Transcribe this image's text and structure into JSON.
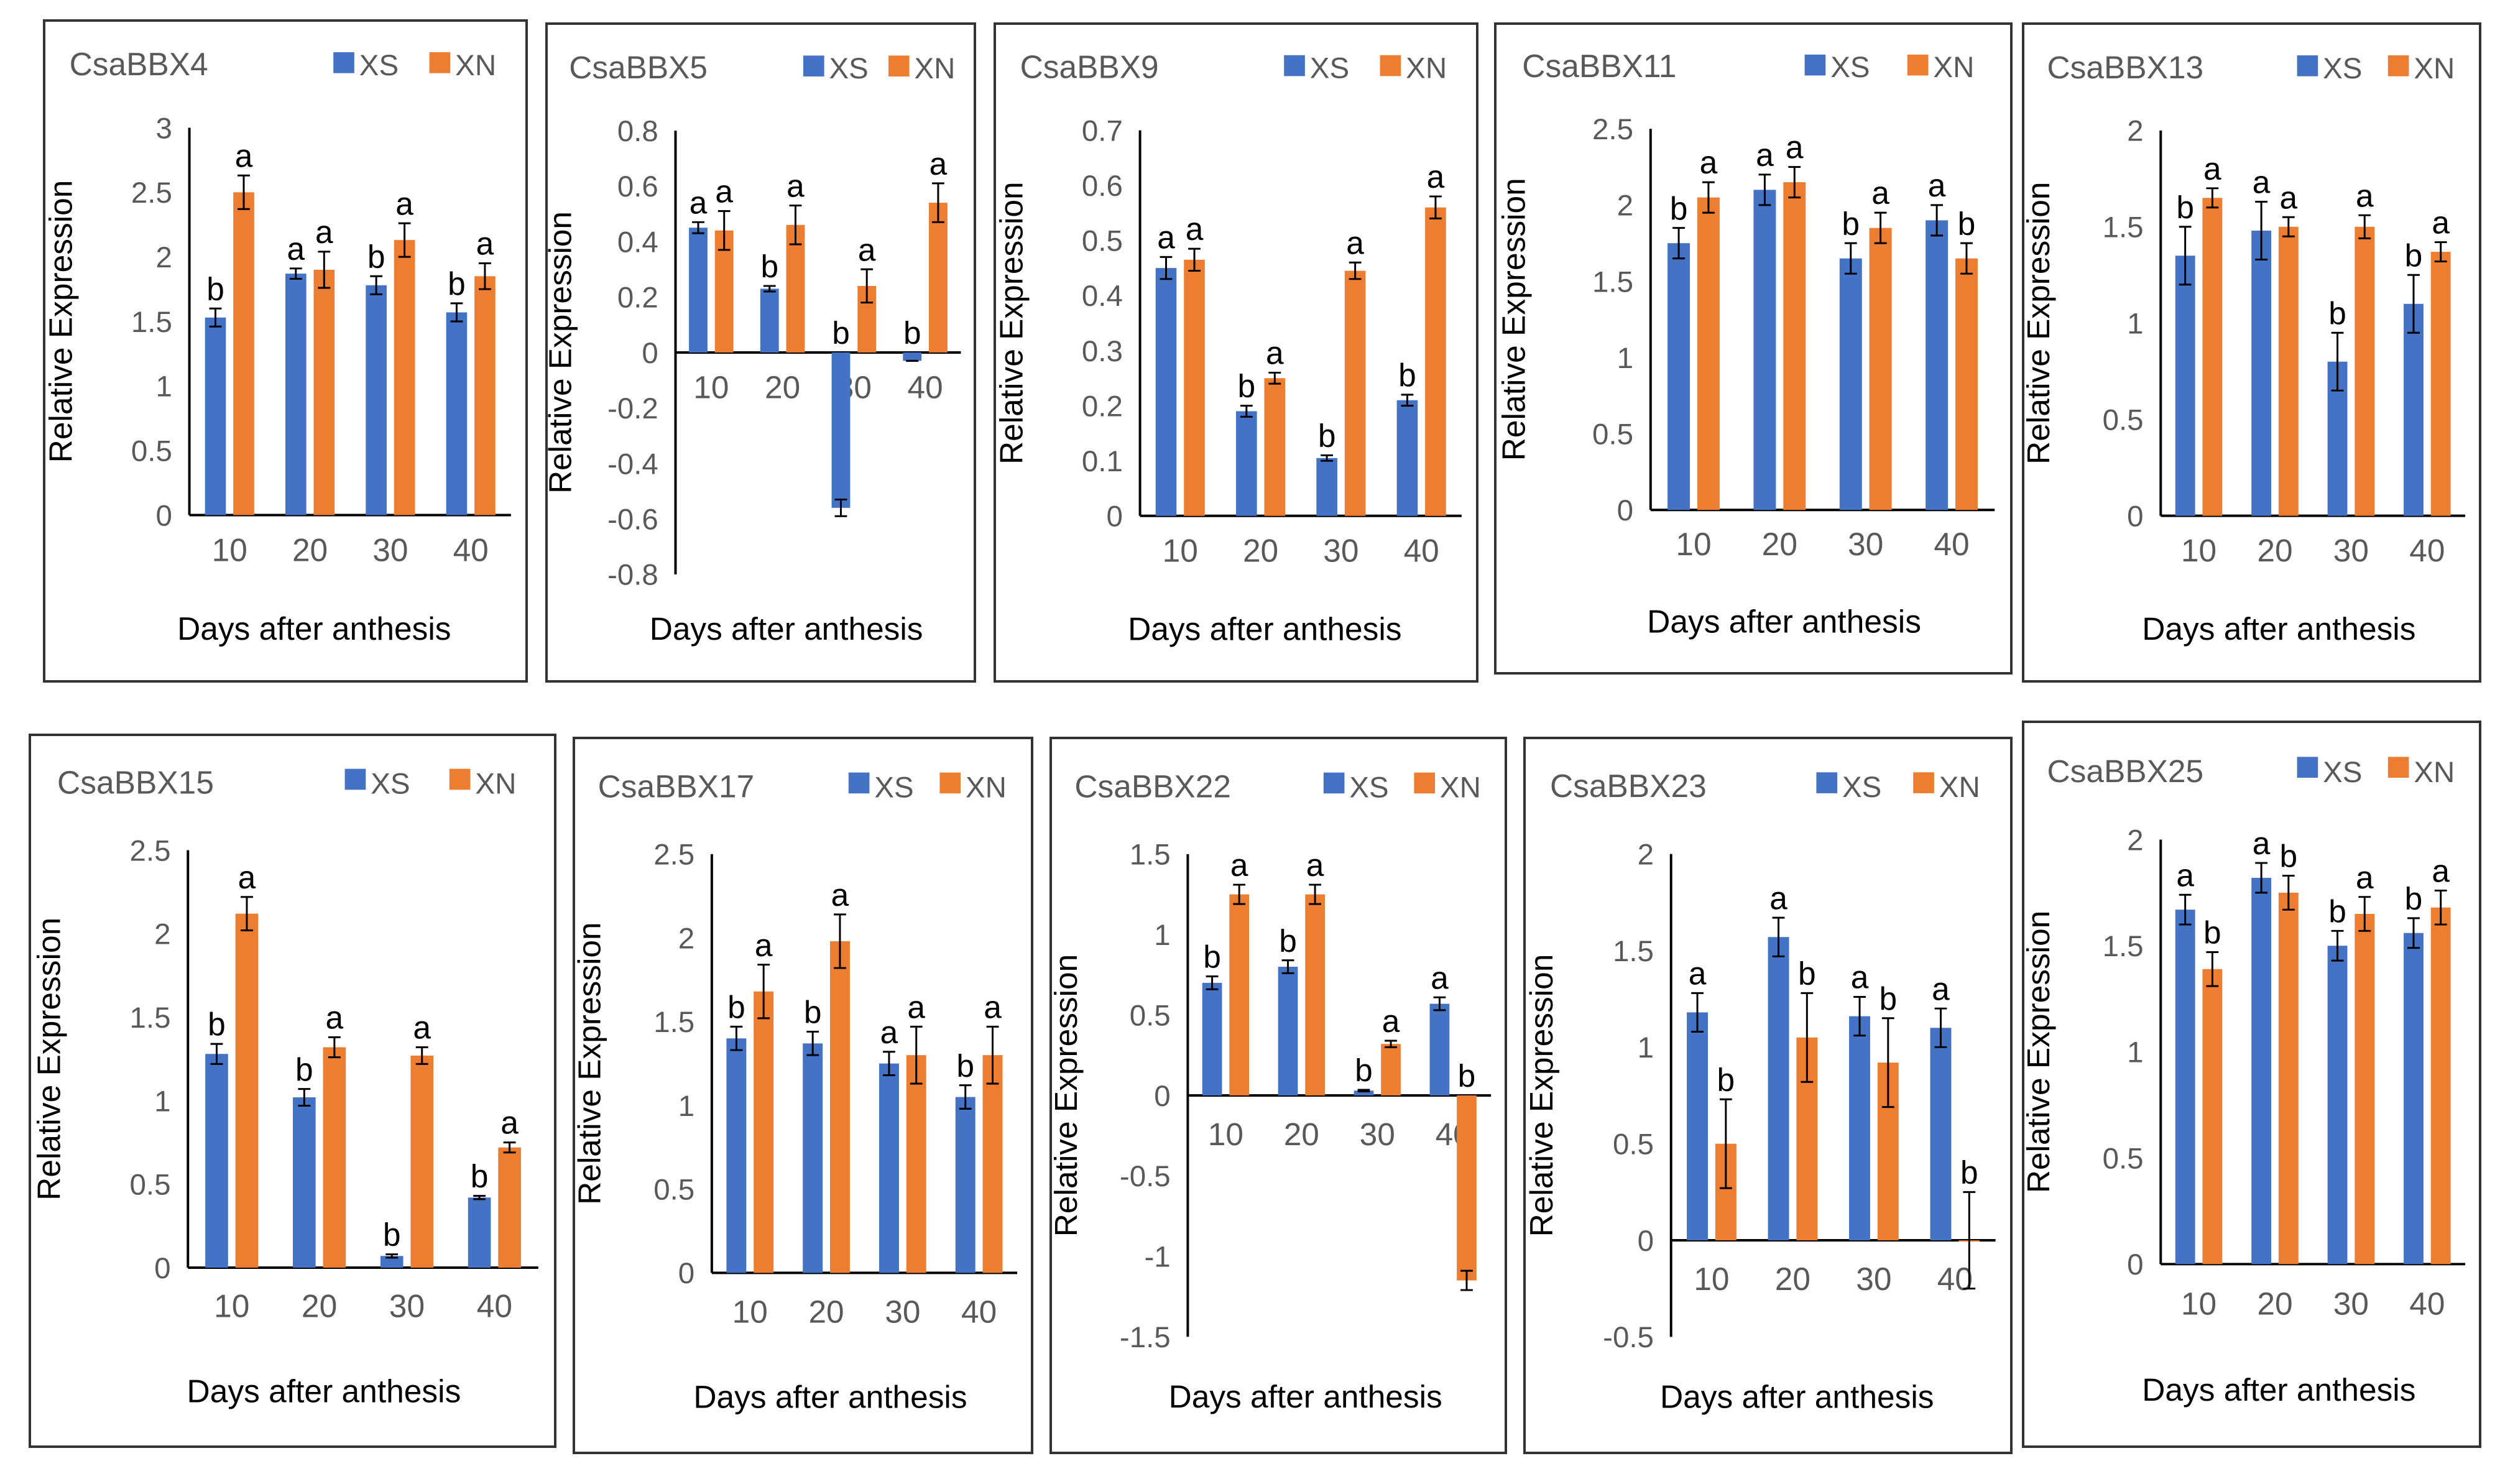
{
  "chart_data": [
    {
      "type": "bar",
      "title": "CsaBBX4",
      "xlabel": "Days after anthesis",
      "ylabel": "Relative Expression",
      "ylim": [
        0,
        3
      ],
      "yticks": [
        "0",
        "0.5",
        "1",
        "1.5",
        "2",
        "2.5",
        "3"
      ],
      "categories": [
        "10",
        "20",
        "30",
        "40"
      ],
      "legend_position": "top-right",
      "series": [
        {
          "name": "XS",
          "color": "#4472C4",
          "values": [
            1.53,
            1.87,
            1.78,
            1.57
          ],
          "errors": [
            0.07,
            0.04,
            0.07,
            0.07
          ],
          "letters": [
            "b",
            "a",
            "b",
            "b"
          ]
        },
        {
          "name": "XN",
          "color": "#ED7D31",
          "values": [
            2.5,
            1.9,
            2.13,
            1.85
          ],
          "errors": [
            0.13,
            0.14,
            0.13,
            0.1
          ],
          "letters": [
            "a",
            "a",
            "a",
            "a"
          ]
        }
      ]
    },
    {
      "type": "bar",
      "title": "CsaBBX5",
      "xlabel": "Days after anthesis",
      "ylabel": "Relative Expression",
      "ylim": [
        -0.8,
        0.8
      ],
      "yticks": [
        "-0.8",
        "-0.6",
        "-0.4",
        "-0.2",
        "0",
        "0.2",
        "0.4",
        "0.6",
        "0.8"
      ],
      "categories": [
        "10",
        "20",
        "30",
        "40"
      ],
      "legend_position": "top-right",
      "series": [
        {
          "name": "XS",
          "color": "#4472C4",
          "values": [
            0.45,
            0.23,
            -0.56,
            -0.03
          ],
          "errors": [
            0.02,
            0.01,
            0.03,
            0.0
          ],
          "letters": [
            "a",
            "b",
            "b",
            "b"
          ]
        },
        {
          "name": "XN",
          "color": "#ED7D31",
          "values": [
            0.44,
            0.46,
            0.24,
            0.54
          ],
          "errors": [
            0.07,
            0.07,
            0.06,
            0.07
          ],
          "letters": [
            "a",
            "a",
            "a",
            "a"
          ]
        }
      ]
    },
    {
      "type": "bar",
      "title": "CsaBBX9",
      "xlabel": "Days after anthesis",
      "ylabel": "Relative Expression",
      "ylim": [
        0,
        0.7
      ],
      "yticks": [
        "0",
        "0.1",
        "0.2",
        "0.3",
        "0.4",
        "0.5",
        "0.6",
        "0.7"
      ],
      "categories": [
        "10",
        "20",
        "30",
        "40"
      ],
      "legend_position": "top-right",
      "series": [
        {
          "name": "XS",
          "color": "#4472C4",
          "values": [
            0.45,
            0.19,
            0.105,
            0.21
          ],
          "errors": [
            0.02,
            0.01,
            0.005,
            0.01
          ],
          "letters": [
            "a",
            "b",
            "b",
            "b"
          ]
        },
        {
          "name": "XN",
          "color": "#ED7D31",
          "values": [
            0.465,
            0.25,
            0.445,
            0.56
          ],
          "errors": [
            0.02,
            0.01,
            0.015,
            0.02
          ],
          "letters": [
            "a",
            "a",
            "a",
            "a"
          ]
        }
      ]
    },
    {
      "type": "bar",
      "title": "CsaBBX11",
      "xlabel": "Days after anthesis",
      "ylabel": "Relative Expression",
      "ylim": [
        0,
        2.5
      ],
      "yticks": [
        "0",
        "0.5",
        "1",
        "1.5",
        "2",
        "2.5"
      ],
      "categories": [
        "10",
        "20",
        "30",
        "40"
      ],
      "legend_position": "top-right",
      "series": [
        {
          "name": "XS",
          "color": "#4472C4",
          "values": [
            1.75,
            2.1,
            1.65,
            1.9
          ],
          "errors": [
            0.1,
            0.1,
            0.1,
            0.1
          ],
          "letters": [
            "b",
            "a",
            "b",
            "a"
          ]
        },
        {
          "name": "XN",
          "color": "#ED7D31",
          "values": [
            2.05,
            2.15,
            1.85,
            1.65
          ],
          "errors": [
            0.1,
            0.1,
            0.1,
            0.1
          ],
          "letters": [
            "a",
            "a",
            "a",
            "b"
          ]
        }
      ]
    },
    {
      "type": "bar",
      "title": "CsaBBX13",
      "xlabel": "Days after anthesis",
      "ylabel": "Relative Expression",
      "ylim": [
        0,
        2
      ],
      "yticks": [
        "0",
        "0.5",
        "1",
        "1.5",
        "2"
      ],
      "categories": [
        "10",
        "20",
        "30",
        "40"
      ],
      "legend_position": "top-right",
      "series": [
        {
          "name": "XS",
          "color": "#4472C4",
          "values": [
            1.35,
            1.48,
            0.8,
            1.1
          ],
          "errors": [
            0.15,
            0.15,
            0.15,
            0.15
          ],
          "letters": [
            "b",
            "a",
            "b",
            "b"
          ]
        },
        {
          "name": "XN",
          "color": "#ED7D31",
          "values": [
            1.65,
            1.5,
            1.5,
            1.37
          ],
          "errors": [
            0.05,
            0.05,
            0.06,
            0.05
          ],
          "letters": [
            "a",
            "a",
            "a",
            "a"
          ]
        }
      ]
    },
    {
      "type": "bar",
      "title": "CsaBBX15",
      "xlabel": "Days after anthesis",
      "ylabel": "Relative Expression",
      "ylim": [
        0,
        2.5
      ],
      "yticks": [
        "0",
        "0.5",
        "1",
        "1.5",
        "2",
        "2.5"
      ],
      "categories": [
        "10",
        "20",
        "30",
        "40"
      ],
      "legend_position": "top-right",
      "series": [
        {
          "name": "XS",
          "color": "#4472C4",
          "values": [
            1.28,
            1.02,
            0.07,
            0.42
          ],
          "errors": [
            0.06,
            0.05,
            0.01,
            0.01
          ],
          "letters": [
            "b",
            "b",
            "b",
            "b"
          ]
        },
        {
          "name": "XN",
          "color": "#ED7D31",
          "values": [
            2.12,
            1.32,
            1.27,
            0.72
          ],
          "errors": [
            0.1,
            0.06,
            0.05,
            0.03
          ],
          "letters": [
            "a",
            "a",
            "a",
            "a"
          ]
        }
      ]
    },
    {
      "type": "bar",
      "title": "CsaBBX17",
      "xlabel": "Days after anthesis",
      "ylabel": "Relative Expression",
      "ylim": [
        0,
        2.5
      ],
      "yticks": [
        "0",
        "0.5",
        "1",
        "1.5",
        "2",
        "2.5"
      ],
      "categories": [
        "10",
        "20",
        "30",
        "40"
      ],
      "legend_position": "top-right",
      "series": [
        {
          "name": "XS",
          "color": "#4472C4",
          "values": [
            1.4,
            1.37,
            1.25,
            1.05
          ],
          "errors": [
            0.07,
            0.07,
            0.07,
            0.07
          ],
          "letters": [
            "b",
            "b",
            "a",
            "b"
          ]
        },
        {
          "name": "XN",
          "color": "#ED7D31",
          "values": [
            1.68,
            1.98,
            1.3,
            1.3
          ],
          "errors": [
            0.16,
            0.16,
            0.17,
            0.17
          ],
          "letters": [
            "a",
            "a",
            "a",
            "a"
          ]
        }
      ]
    },
    {
      "type": "bar",
      "title": "CsaBBX22",
      "xlabel": "Days after anthesis",
      "ylabel": "Relative Expression",
      "ylim": [
        -1.5,
        1.5
      ],
      "yticks": [
        "-1.5",
        "-1",
        "-0.5",
        "0",
        "0.5",
        "1",
        "1.5"
      ],
      "categories": [
        "10",
        "20",
        "30",
        "40"
      ],
      "legend_position": "top-right",
      "series": [
        {
          "name": "XS",
          "color": "#4472C4",
          "values": [
            0.7,
            0.8,
            0.03,
            0.57
          ],
          "errors": [
            0.04,
            0.04,
            0.005,
            0.04
          ],
          "letters": [
            "b",
            "b",
            "b",
            "a"
          ]
        },
        {
          "name": "XN",
          "color": "#ED7D31",
          "values": [
            1.25,
            1.25,
            0.32,
            -1.15
          ],
          "errors": [
            0.06,
            0.06,
            0.02,
            0.06
          ],
          "letters": [
            "a",
            "a",
            "a",
            "b"
          ]
        }
      ]
    },
    {
      "type": "bar",
      "title": "CsaBBX23",
      "xlabel": "Days after anthesis",
      "ylabel": "Relative Expression",
      "ylim": [
        -0.5,
        2
      ],
      "yticks": [
        "-0.5",
        "0",
        "0.5",
        "1",
        "1.5",
        "2"
      ],
      "categories": [
        "10",
        "20",
        "30",
        "40"
      ],
      "legend_position": "top-right",
      "series": [
        {
          "name": "XS",
          "color": "#4472C4",
          "values": [
            1.18,
            1.57,
            1.16,
            1.1
          ],
          "errors": [
            0.1,
            0.1,
            0.1,
            0.1
          ],
          "letters": [
            "a",
            "a",
            "a",
            "a"
          ]
        },
        {
          "name": "XN",
          "color": "#ED7D31",
          "values": [
            0.5,
            1.05,
            0.92,
            0.0
          ],
          "errors": [
            0.23,
            0.23,
            0.23,
            0.25
          ],
          "letters": [
            "b",
            "b",
            "b",
            "b"
          ]
        }
      ]
    },
    {
      "type": "bar",
      "title": "CsaBBX25",
      "xlabel": "Days after anthesis",
      "ylabel": "Relative Expression",
      "ylim": [
        0,
        2
      ],
      "yticks": [
        "0",
        "0.5",
        "1",
        "1.5",
        "2"
      ],
      "categories": [
        "10",
        "20",
        "30",
        "40"
      ],
      "legend_position": "top-right",
      "series": [
        {
          "name": "XS",
          "color": "#4472C4",
          "values": [
            1.67,
            1.82,
            1.5,
            1.56
          ],
          "errors": [
            0.07,
            0.07,
            0.07,
            0.07
          ],
          "letters": [
            "a",
            "a",
            "b",
            "b"
          ]
        },
        {
          "name": "XN",
          "color": "#ED7D31",
          "values": [
            1.39,
            1.75,
            1.65,
            1.68
          ],
          "errors": [
            0.08,
            0.08,
            0.08,
            0.08
          ],
          "letters": [
            "b",
            "b",
            "a",
            "a"
          ]
        }
      ]
    }
  ]
}
